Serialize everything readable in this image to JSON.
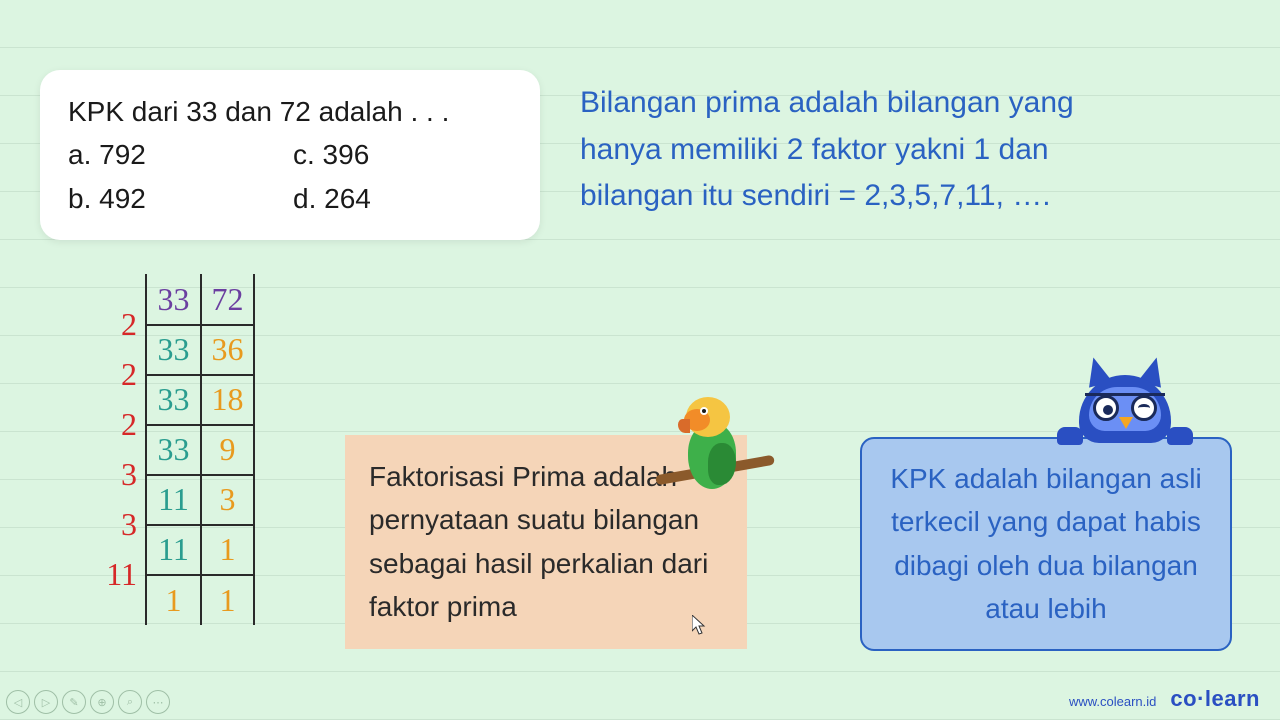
{
  "question": {
    "prompt": "KPK dari 33 dan 72 adalah . . .",
    "options": {
      "a": "a. 792",
      "b": "b. 492",
      "c": "c. 396",
      "d": "d. 264"
    }
  },
  "definition_top": {
    "line1": "Bilangan prima  adalah bilangan yang",
    "line2": "hanya memiliki 2 faktor yakni 1 dan",
    "line3": " bilangan itu sendiri = 2,3,5,7,11, …."
  },
  "ladder": {
    "rows": [
      {
        "divisor": "2",
        "a": "33",
        "b": "72",
        "a_color": "#6b3fa0",
        "b_color": "#6b3fa0"
      },
      {
        "divisor": "2",
        "a": "33",
        "b": "36",
        "a_color": "#2a9d8f",
        "b_color": "#e89a1e"
      },
      {
        "divisor": "2",
        "a": "33",
        "b": "18",
        "a_color": "#2a9d8f",
        "b_color": "#e89a1e"
      },
      {
        "divisor": "3",
        "a": "33",
        "b": "9",
        "a_color": "#2a9d8f",
        "b_color": "#e89a1e"
      },
      {
        "divisor": "3",
        "a": "11",
        "b": "3",
        "a_color": "#2a9d8f",
        "b_color": "#e89a1e"
      },
      {
        "divisor": "11",
        "a": "11",
        "b": "1",
        "a_color": "#2a9d8f",
        "b_color": "#e89a1e"
      },
      {
        "divisor": "",
        "a": "1",
        "b": "1",
        "a_color": "#e89a1e",
        "b_color": "#e89a1e"
      }
    ]
  },
  "note_peach": "Faktorisasi Prima adalah pernyataan suatu bilangan sebagai hasil perkalian dari faktor prima",
  "note_blue": "KPK adalah bilangan asli terkecil yang dapat habis dibagi oleh dua bilangan atau lebih",
  "brand": {
    "url": "www.colearn.id",
    "logo_a": "co",
    "logo_b": "learn"
  },
  "colors": {
    "bg": "#dcf5e1",
    "blue_text": "#2a62c2",
    "red": "#d62828",
    "peach": "#f5d5b8",
    "blue_box": "#a8c8ef",
    "owl": "#2a4fc2"
  }
}
